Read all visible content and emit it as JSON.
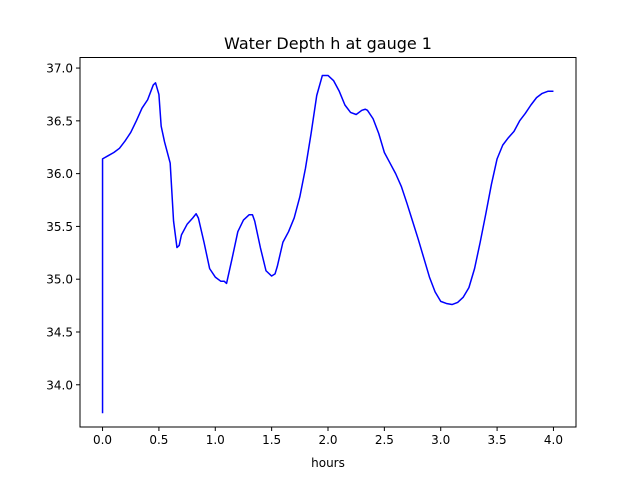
{
  "chart_data": {
    "type": "line",
    "title": "Water Depth h at gauge 1",
    "xlabel": "hours",
    "ylabel": "",
    "xlim": [
      -0.2,
      4.2
    ],
    "ylim": [
      33.6,
      37.1
    ],
    "xticks": [
      0.0,
      0.5,
      1.0,
      1.5,
      2.0,
      2.5,
      3.0,
      3.5,
      4.0
    ],
    "xtick_labels": [
      "0.0",
      "0.5",
      "1.0",
      "1.5",
      "2.0",
      "2.5",
      "3.0",
      "3.5",
      "4.0"
    ],
    "yticks": [
      34.0,
      34.5,
      35.0,
      35.5,
      36.0,
      36.5,
      37.0
    ],
    "ytick_labels": [
      "34.0",
      "34.5",
      "35.0",
      "35.5",
      "36.0",
      "36.5",
      "37.0"
    ],
    "grid": false,
    "series": [
      {
        "color": "#0000ff",
        "x": [
          0.0,
          0.0,
          0.05,
          0.1,
          0.15,
          0.2,
          0.25,
          0.3,
          0.35,
          0.4,
          0.45,
          0.47,
          0.5,
          0.52,
          0.55,
          0.6,
          0.63,
          0.66,
          0.68,
          0.7,
          0.75,
          0.8,
          0.83,
          0.85,
          0.9,
          0.95,
          1.0,
          1.05,
          1.08,
          1.1,
          1.15,
          1.2,
          1.25,
          1.3,
          1.33,
          1.35,
          1.4,
          1.45,
          1.5,
          1.53,
          1.55,
          1.6,
          1.65,
          1.7,
          1.75,
          1.8,
          1.85,
          1.9,
          1.95,
          2.0,
          2.02,
          2.05,
          2.1,
          2.15,
          2.2,
          2.25,
          2.3,
          2.33,
          2.35,
          2.4,
          2.45,
          2.5,
          2.55,
          2.6,
          2.65,
          2.7,
          2.75,
          2.8,
          2.85,
          2.9,
          2.95,
          3.0,
          3.05,
          3.1,
          3.15,
          3.2,
          3.25,
          3.3,
          3.35,
          3.4,
          3.45,
          3.5,
          3.55,
          3.6,
          3.65,
          3.7,
          3.75,
          3.8,
          3.85,
          3.9,
          3.95,
          4.0
        ],
        "y": [
          33.73,
          36.14,
          36.17,
          36.2,
          36.24,
          36.31,
          36.39,
          36.5,
          36.62,
          36.7,
          36.84,
          36.86,
          36.75,
          36.45,
          36.3,
          36.1,
          35.55,
          35.3,
          35.32,
          35.42,
          35.52,
          35.58,
          35.62,
          35.58,
          35.35,
          35.1,
          35.02,
          34.98,
          34.98,
          34.96,
          35.2,
          35.45,
          35.56,
          35.61,
          35.61,
          35.55,
          35.3,
          35.08,
          35.03,
          35.05,
          35.12,
          35.35,
          35.45,
          35.58,
          35.78,
          36.05,
          36.38,
          36.74,
          36.93,
          36.93,
          36.91,
          36.88,
          36.78,
          36.65,
          36.58,
          36.56,
          36.6,
          36.61,
          36.6,
          36.52,
          36.38,
          36.2,
          36.1,
          36.0,
          35.88,
          35.72,
          35.55,
          35.38,
          35.2,
          35.02,
          34.88,
          34.79,
          34.77,
          34.76,
          34.78,
          34.83,
          34.92,
          35.1,
          35.35,
          35.62,
          35.9,
          36.14,
          36.27,
          36.34,
          36.4,
          36.5,
          36.57,
          36.65,
          36.72,
          36.76,
          36.78,
          36.78
        ]
      }
    ]
  }
}
